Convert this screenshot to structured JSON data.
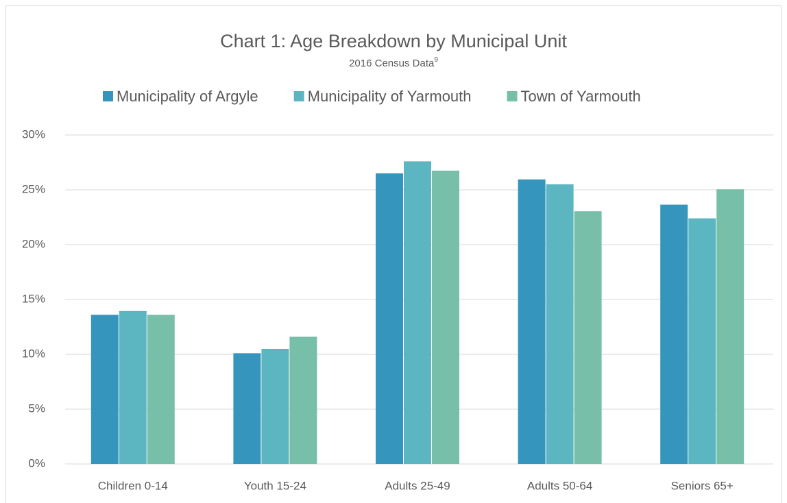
{
  "chart_data": {
    "type": "bar",
    "title": "Chart 1: Age Breakdown by Municipal Unit",
    "subtitle": "2016 Census Data",
    "subtitle_footnote": "9",
    "categories": [
      "Children 0-14",
      "Youth 15-24",
      "Adults 25-49",
      "Adults 50-64",
      "Seniors 65+"
    ],
    "series": [
      {
        "name": "Municipality of Argyle",
        "color": "#3595bd",
        "values": [
          13.6,
          10.1,
          26.5,
          25.95,
          23.65
        ]
      },
      {
        "name": "Municipality of Yarmouth",
        "color": "#5bb6c1",
        "values": [
          13.95,
          10.5,
          27.6,
          25.5,
          22.4
        ]
      },
      {
        "name": "Town of Yarmouth",
        "color": "#77bfa8",
        "values": [
          13.6,
          11.6,
          26.75,
          23.05,
          25.05
        ]
      }
    ],
    "ylim": [
      0,
      30
    ],
    "yticks": [
      {
        "value": 0,
        "label": "0%"
      },
      {
        "value": 5,
        "label": "5%"
      },
      {
        "value": 10,
        "label": "10%"
      },
      {
        "value": 15,
        "label": "15%"
      },
      {
        "value": 20,
        "label": "20%"
      },
      {
        "value": 25,
        "label": "25%"
      },
      {
        "value": 30,
        "label": "30%"
      }
    ],
    "grid": true,
    "legend": "top"
  }
}
